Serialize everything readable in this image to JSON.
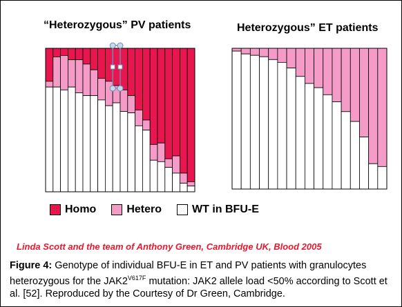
{
  "colors": {
    "homo": "#e8164f",
    "hetero": "#f49bc8",
    "wt": "#ffffff",
    "credit": "#e8172f",
    "handle": "#c8d7ea"
  },
  "chart_data": [
    {
      "type": "bar",
      "stacked": true,
      "title": "“Heterozygous” PV patients",
      "ylim": [
        0,
        100
      ],
      "series": [
        {
          "name": "Homo",
          "values": [
            23,
            6,
            5,
            8,
            8,
            11,
            15,
            21,
            23,
            26,
            29,
            33,
            43,
            50,
            67,
            66,
            77,
            75,
            87,
            93
          ]
        },
        {
          "name": "Hetero",
          "values": [
            4,
            21,
            24,
            19,
            23,
            22,
            18,
            15,
            17,
            12,
            15,
            12,
            11,
            7,
            11,
            13,
            6,
            12,
            7,
            3
          ]
        },
        {
          "name": "WT in BFU-E",
          "values": [
            73,
            73,
            71,
            73,
            69,
            67,
            67,
            64,
            60,
            62,
            56,
            55,
            46,
            43,
            22,
            21,
            17,
            13,
            6,
            4
          ]
        }
      ],
      "legend": "bottom"
    },
    {
      "type": "bar",
      "stacked": true,
      "title": "Heterozygous” ET patients",
      "ylim": [
        0,
        100
      ],
      "series": [
        {
          "name": "Homo",
          "values": [
            0,
            0,
            0,
            0,
            0,
            0,
            0,
            0,
            0,
            0,
            0,
            0,
            0,
            0,
            0,
            0,
            0
          ]
        },
        {
          "name": "Hetero",
          "values": [
            2,
            4,
            5,
            6,
            8,
            10,
            14,
            20,
            25,
            28,
            33,
            38,
            45,
            52,
            63,
            82,
            84
          ]
        },
        {
          "name": "WT in BFU-E",
          "values": [
            98,
            96,
            95,
            94,
            92,
            90,
            86,
            80,
            75,
            72,
            67,
            62,
            55,
            48,
            37,
            18,
            16
          ]
        }
      ]
    }
  ],
  "legend": {
    "homo": "Homo",
    "hetero": "Hetero",
    "wt": "WT in BFU-E"
  },
  "credit": "Linda Scott and the team of Anthony Green, Cambridge UK,  Blood  2005",
  "caption": {
    "label": "Figure 4:",
    "text_1": " Genotype of individual BFU-E in ET and PV patients with granulocytes heterozygous for the JAK2",
    "superscript": "V617F",
    "text_2": " mutation: JAK2 allele load <50% according to Scott et al. [52]. Reproduced by the Courtesy of Dr Green, Cambridge."
  }
}
